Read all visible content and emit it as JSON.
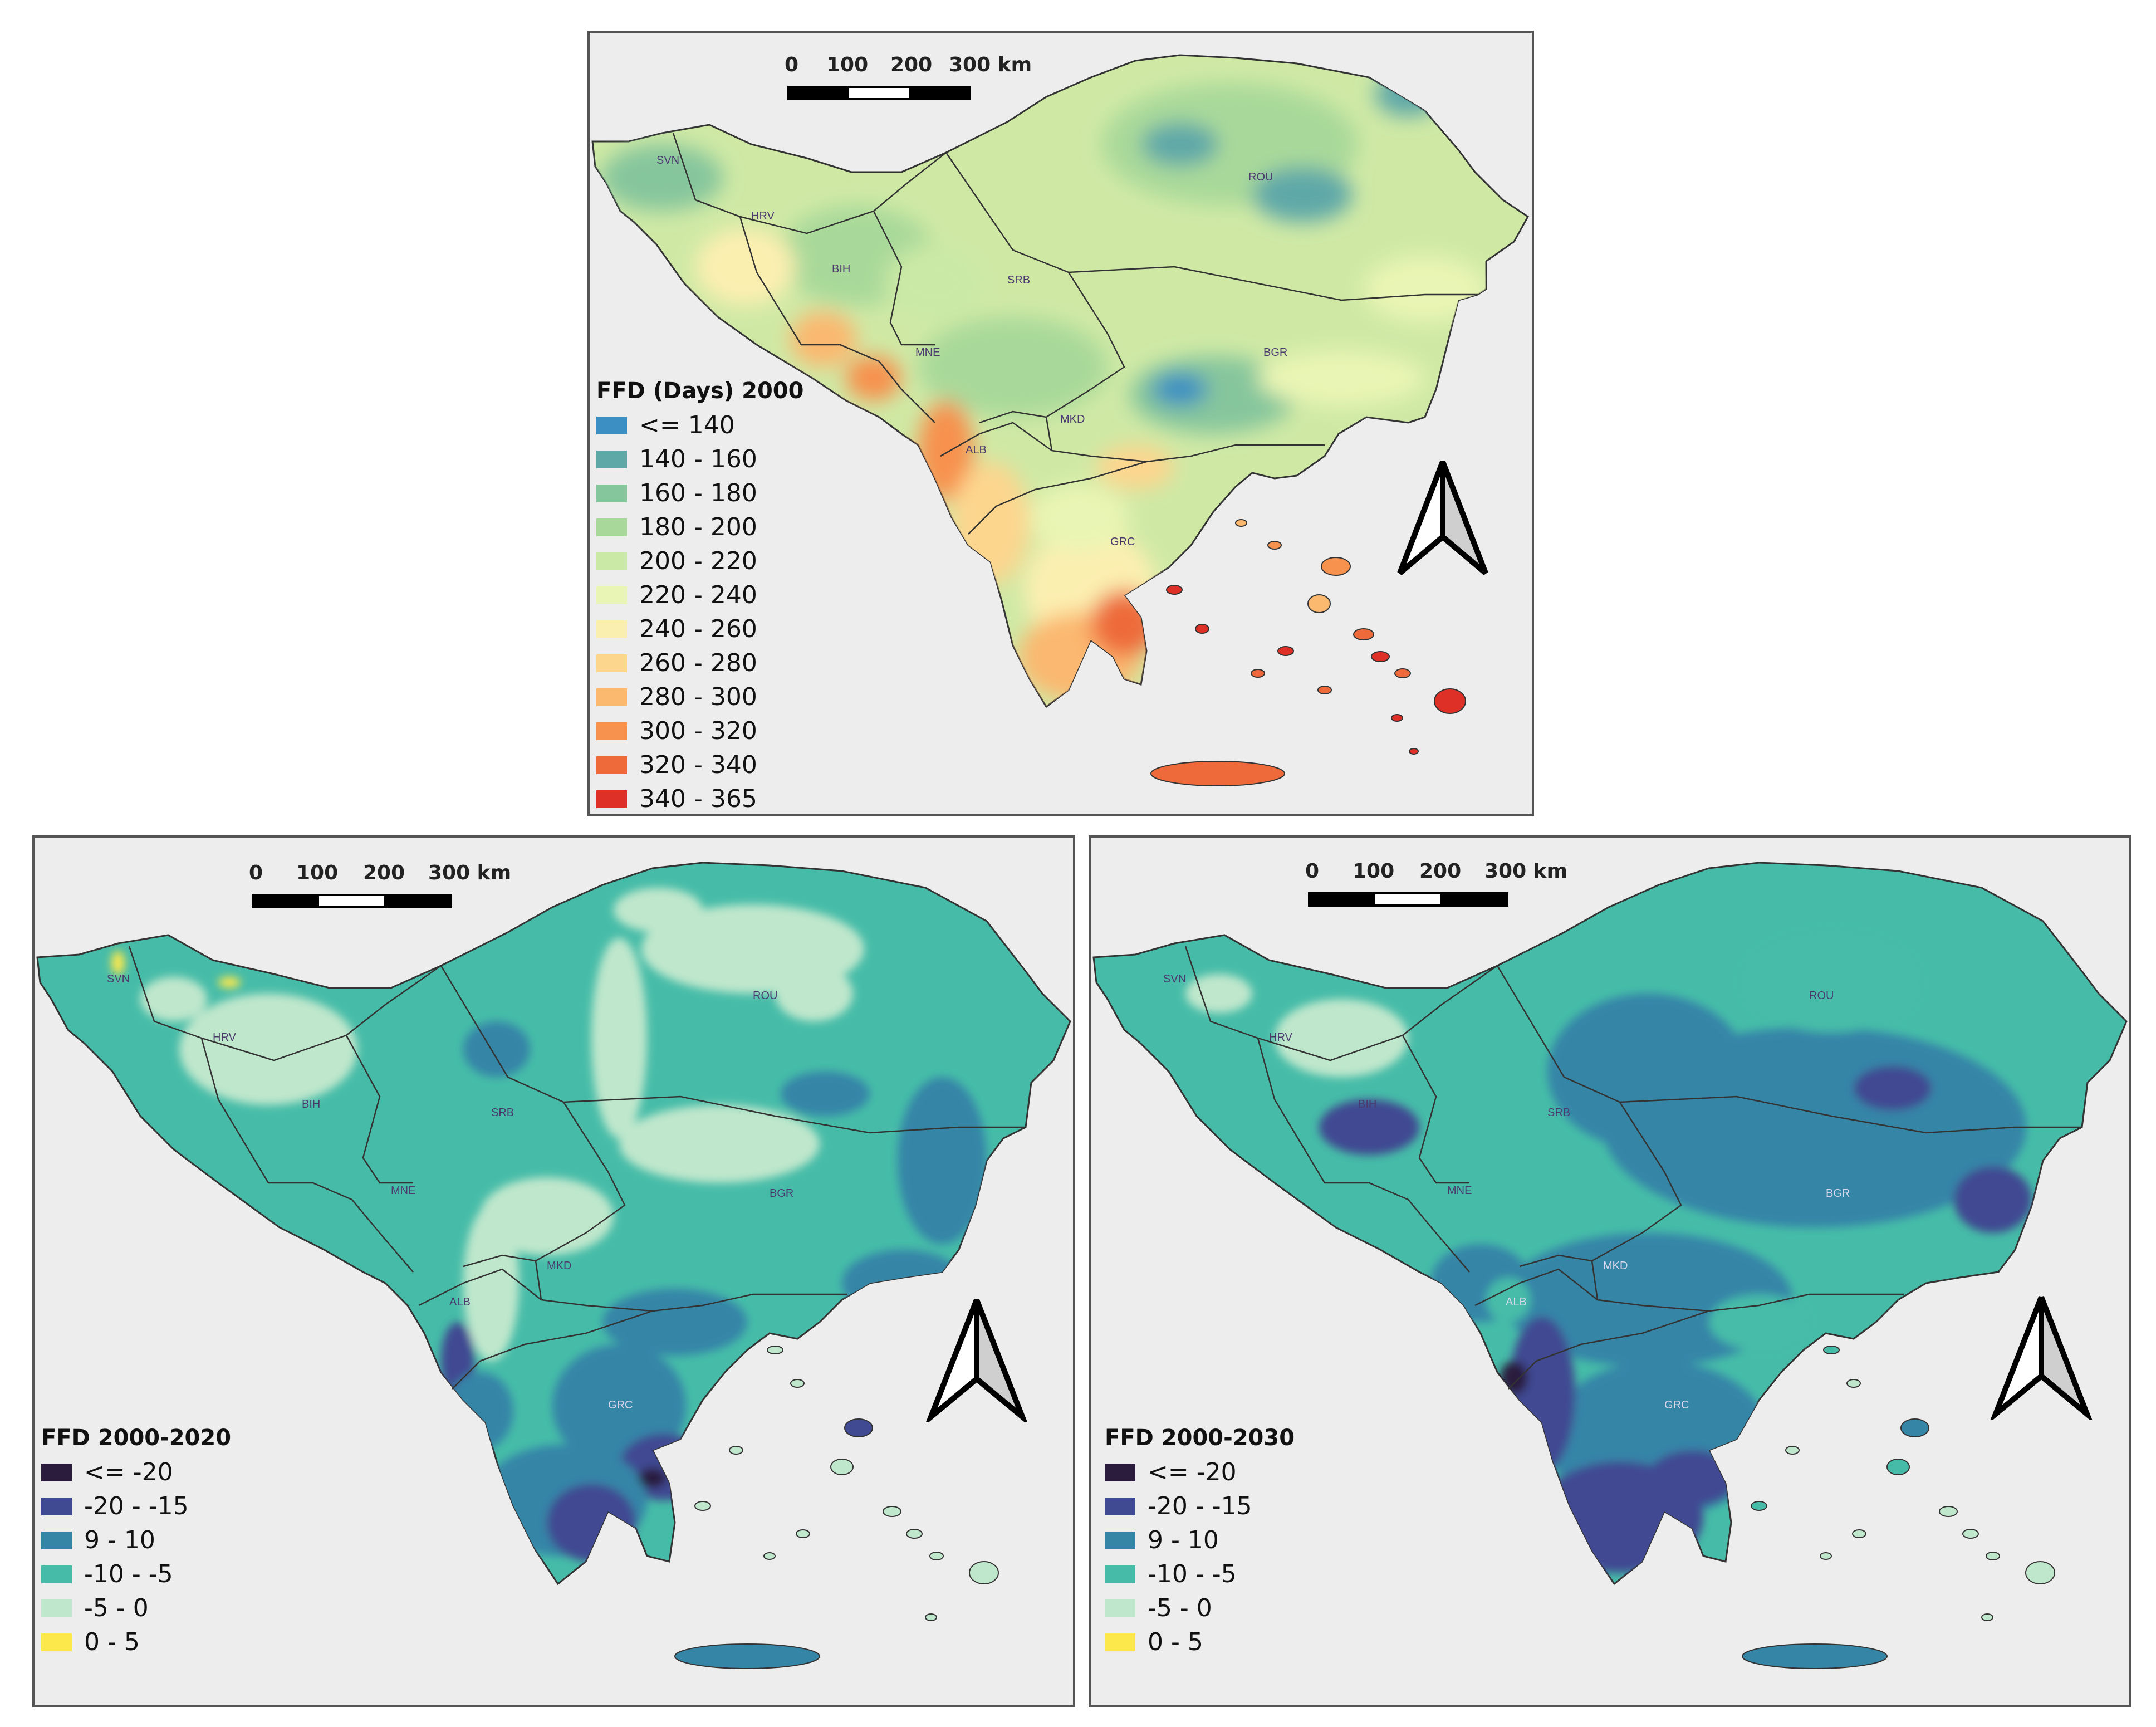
{
  "maps": {
    "top": {
      "scale_labels": [
        "0",
        "100",
        "200",
        "300 km"
      ],
      "legend": {
        "title": "FFD (Days) 2000",
        "items": [
          {
            "label": "<= 140",
            "color": "#3b8fc2"
          },
          {
            "label": "140 - 160",
            "color": "#5fa8a8"
          },
          {
            "label": "160 - 180",
            "color": "#86c69c"
          },
          {
            "label": "180 - 200",
            "color": "#a9d99a"
          },
          {
            "label": "200 - 220",
            "color": "#cbe9a6"
          },
          {
            "label": "220 - 240",
            "color": "#e9f5b4"
          },
          {
            "label": "240 - 260",
            "color": "#fbefb0"
          },
          {
            "label": "260 - 280",
            "color": "#fdd68e"
          },
          {
            "label": "280 - 300",
            "color": "#fbb86f"
          },
          {
            "label": "300 - 320",
            "color": "#f7914e"
          },
          {
            "label": "320 - 340",
            "color": "#ee6a3a"
          },
          {
            "label": "340 - 365",
            "color": "#df3027"
          }
        ]
      },
      "country_labels": [
        "SVN",
        "HRV",
        "BIH",
        "SRB",
        "ROU",
        "MNE",
        "BGR",
        "MKD",
        "ALB",
        "GRC"
      ]
    },
    "left": {
      "scale_labels": [
        "0",
        "100",
        "200",
        "300 km"
      ],
      "legend": {
        "title": "FFD 2000-2020",
        "items": [
          {
            "label": "<= -20",
            "color": "#2b1b3d"
          },
          {
            "label": "-20 - -15",
            "color": "#3f4a92"
          },
          {
            "label": "9 - 10",
            "color": "#3585a7"
          },
          {
            "label": "-10 - -5",
            "color": "#46bca8"
          },
          {
            "label": "-5 - 0",
            "color": "#bfe7cc"
          },
          {
            "label": "0 - 5",
            "color": "#fde84c"
          }
        ]
      },
      "country_labels": [
        "SVN",
        "HRV",
        "BIH",
        "SRB",
        "ROU",
        "MNE",
        "BGR",
        "MKD",
        "ALB",
        "GRC"
      ]
    },
    "right": {
      "scale_labels": [
        "0",
        "100",
        "200",
        "300 km"
      ],
      "legend": {
        "title": "FFD 2000-2030",
        "items": [
          {
            "label": "<= -20",
            "color": "#2b1b3d"
          },
          {
            "label": "-20 - -15",
            "color": "#3f4a92"
          },
          {
            "label": "9 - 10",
            "color": "#3585a7"
          },
          {
            "label": "-10 - -5",
            "color": "#46bca8"
          },
          {
            "label": "-5 - 0",
            "color": "#bfe7cc"
          },
          {
            "label": "0 - 5",
            "color": "#fde84c"
          }
        ]
      },
      "country_labels": [
        "SVN",
        "HRV",
        "BIH",
        "SRB",
        "ROU",
        "MNE",
        "BGR",
        "MKD",
        "ALB",
        "GRC"
      ]
    }
  }
}
